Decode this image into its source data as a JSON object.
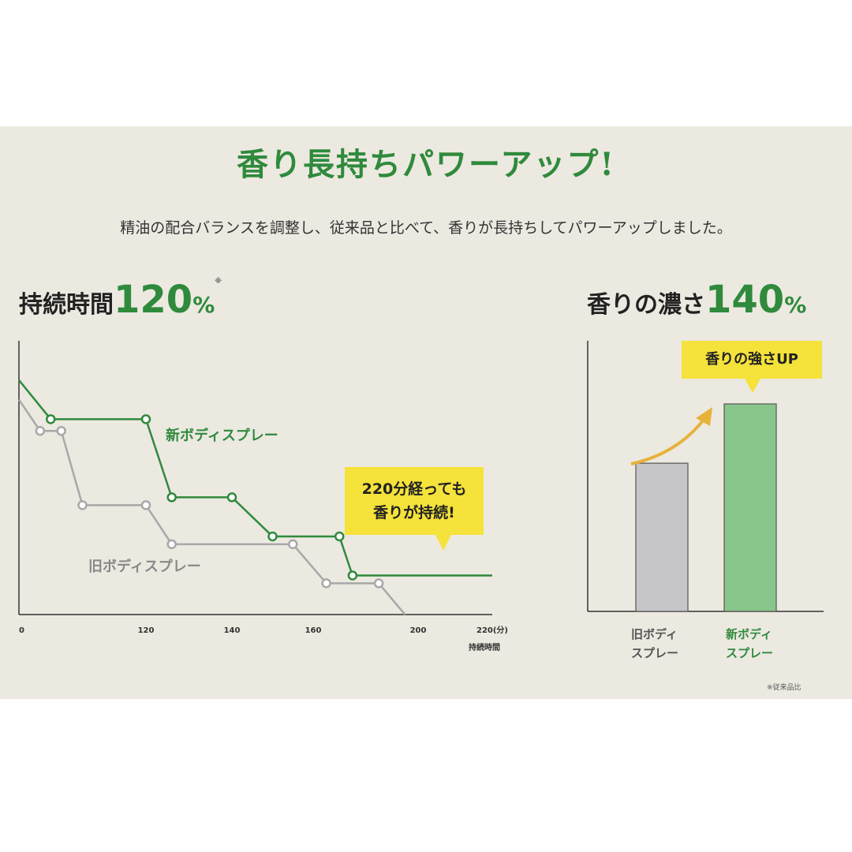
{
  "title": "香り長持ちパワーアップ!",
  "subtitle": "精油の配合バランスを調整し、従来品と比べて、香りが長持ちしてパワーアップしました。",
  "left_heading": {
    "label": "持続時間",
    "value": "120",
    "unit": "%",
    "note": "※"
  },
  "right_heading": {
    "label": "香りの濃さ",
    "value": "140",
    "unit": "%"
  },
  "callout_left": {
    "line1": "220分経っても",
    "line2": "香りが持続!"
  },
  "callout_right": "香りの強さUP",
  "footnote": "※従来品比",
  "colors": {
    "accent_green": "#2f8a3c",
    "old_gray": "#a8a8a8",
    "callout_yellow": "#f5e23a",
    "bar_green": "#89c68c",
    "bar_gray": "#c6c6c8"
  },
  "chart_data": [
    {
      "type": "line",
      "xlabel": "持続時間",
      "x_ticks": [
        "0",
        "120",
        "140",
        "160",
        "200",
        "220(分)"
      ],
      "series": [
        {
          "name": "新ボディスプレー",
          "points": [
            [
              0,
              6
            ],
            [
              30,
              5
            ],
            [
              120,
              5
            ],
            [
              126,
              3
            ],
            [
              140,
              3
            ],
            [
              150,
              2
            ],
            [
              170,
              2
            ],
            [
              175,
              1
            ],
            [
              220,
              1
            ]
          ]
        },
        {
          "name": "旧ボディスプレー",
          "points": [
            [
              0,
              5.5
            ],
            [
              20,
              4.7
            ],
            [
              40,
              4.7
            ],
            [
              60,
              2.8
            ],
            [
              120,
              2.8
            ],
            [
              126,
              1.8
            ],
            [
              155,
              1.8
            ],
            [
              165,
              0.8
            ],
            [
              185,
              0.8
            ],
            [
              195,
              0
            ]
          ]
        }
      ]
    },
    {
      "type": "bar",
      "categories": [
        "旧ボディスプレー",
        "新ボディスプレー"
      ],
      "category_lines": [
        [
          "旧ボディ",
          "スプレー"
        ],
        [
          "新ボディ",
          "スプレー"
        ]
      ],
      "values": [
        100,
        140
      ]
    }
  ]
}
